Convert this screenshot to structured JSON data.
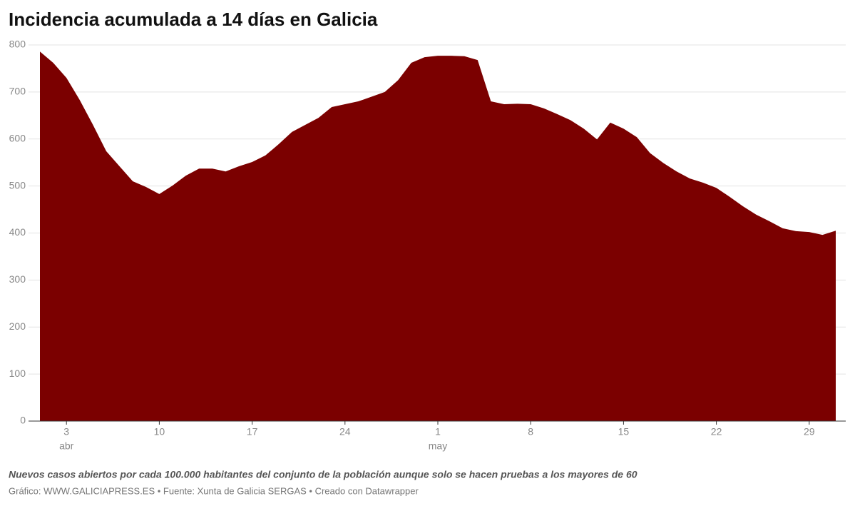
{
  "chart_data": {
    "type": "area",
    "title": "Incidencia acumulada a 14 días en Galicia",
    "subtitle": "Nuevos casos abiertos por cada 100.000 habitantes del conjunto de la población aunque solo se hacen pruebas a los mayores de 60",
    "source": "Gráfico: WWW.GALICIAPRESS.ES • Fuente: Xunta de Galicia SERGAS • Creado con Datawrapper",
    "color": "#7b0000",
    "x": [
      "04-01",
      "04-02",
      "04-03",
      "04-04",
      "04-05",
      "04-06",
      "04-07",
      "04-08",
      "04-09",
      "04-10",
      "04-11",
      "04-12",
      "04-13",
      "04-14",
      "04-15",
      "04-16",
      "04-17",
      "04-18",
      "04-19",
      "04-20",
      "04-21",
      "04-22",
      "04-23",
      "04-24",
      "04-25",
      "04-26",
      "04-27",
      "04-28",
      "04-29",
      "04-30",
      "05-01",
      "05-02",
      "05-03",
      "05-04",
      "05-05",
      "05-06",
      "05-07",
      "05-08",
      "05-09",
      "05-10",
      "05-11",
      "05-12",
      "05-13",
      "05-14",
      "05-15",
      "05-16",
      "05-17",
      "05-18",
      "05-19",
      "05-20",
      "05-21",
      "05-22",
      "05-23",
      "05-24",
      "05-25",
      "05-26",
      "05-27",
      "05-28",
      "05-29",
      "05-30",
      "05-31"
    ],
    "values": [
      786,
      762,
      730,
      683,
      630,
      574,
      542,
      510,
      498,
      483,
      501,
      522,
      537,
      537,
      531,
      542,
      551,
      565,
      589,
      615,
      630,
      645,
      668,
      674,
      680,
      690,
      700,
      725,
      762,
      774,
      777,
      777,
      776,
      768,
      680,
      674,
      675,
      674,
      665,
      653,
      640,
      622,
      599,
      635,
      622,
      604,
      570,
      549,
      531,
      516,
      507,
      496,
      477,
      457,
      439,
      425,
      410,
      404,
      402,
      396,
      405
    ],
    "xticks": [
      {
        "value": "04-03",
        "label": "3"
      },
      {
        "value": "04-10",
        "label": "10"
      },
      {
        "value": "04-17",
        "label": "17"
      },
      {
        "value": "04-24",
        "label": "24"
      },
      {
        "value": "05-01",
        "label": "1"
      },
      {
        "value": "05-08",
        "label": "8"
      },
      {
        "value": "05-15",
        "label": "15"
      },
      {
        "value": "05-22",
        "label": "22"
      },
      {
        "value": "05-29",
        "label": "29"
      }
    ],
    "xtick_months": [
      {
        "value": "04-03",
        "label": "abr"
      },
      {
        "value": "05-01",
        "label": "may"
      }
    ],
    "ylim": [
      0,
      800
    ],
    "yticks": [
      0,
      100,
      200,
      300,
      400,
      500,
      600,
      700,
      800
    ],
    "grid": true
  }
}
